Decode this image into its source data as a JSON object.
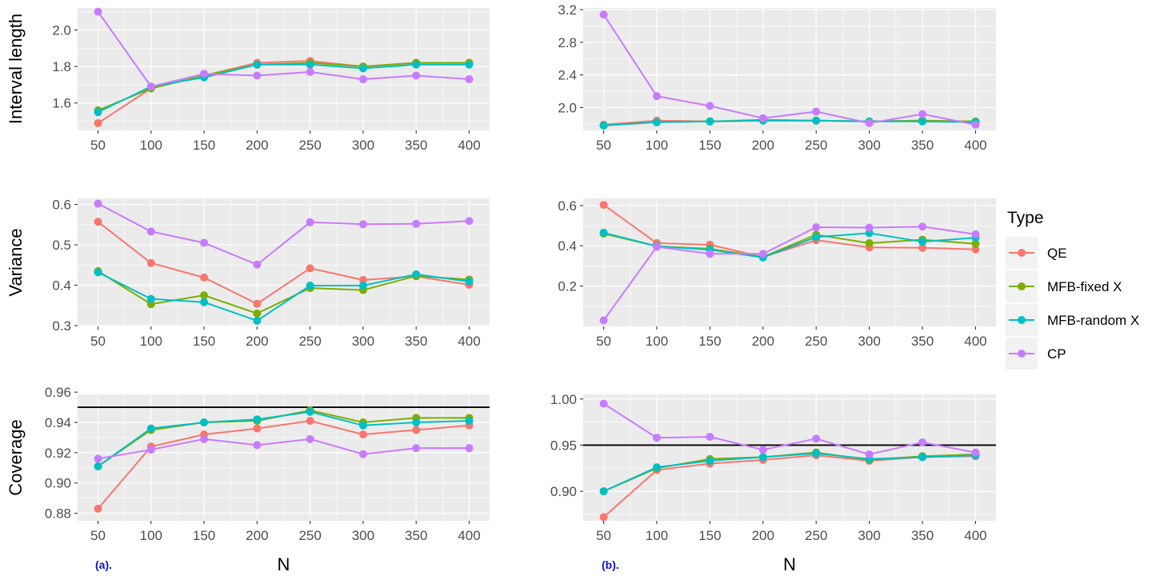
{
  "legend": {
    "title": "Type",
    "entries": [
      {
        "label": "QE",
        "color": "#F8766D"
      },
      {
        "label": "MFB-fixed X",
        "color": "#7CAE00"
      },
      {
        "label": "MFB-random X",
        "color": "#00BFC4"
      },
      {
        "label": "CP",
        "color": "#C77CFF"
      }
    ]
  },
  "panel_tags": {
    "a": "(a).",
    "b": "(b)."
  },
  "chart_data": [
    {
      "type": "line",
      "panel": "a",
      "ylabel": "Interval length",
      "xlabel": "",
      "x": [
        50,
        100,
        150,
        200,
        250,
        300,
        350,
        400
      ],
      "ylim": [
        1.45,
        2.12
      ],
      "yticks": [
        "1.6",
        "1.8",
        "2.0"
      ],
      "yticks_v": [
        1.6,
        1.8,
        2.0
      ],
      "grid": true,
      "series": [
        {
          "name": "QE",
          "values": [
            1.49,
            1.68,
            1.75,
            1.82,
            1.83,
            1.8,
            1.82,
            1.82
          ]
        },
        {
          "name": "MFB-fixed X",
          "values": [
            1.56,
            1.68,
            1.75,
            1.81,
            1.82,
            1.8,
            1.82,
            1.82
          ]
        },
        {
          "name": "MFB-random X",
          "values": [
            1.55,
            1.69,
            1.74,
            1.81,
            1.81,
            1.79,
            1.81,
            1.81
          ]
        },
        {
          "name": "CP",
          "values": [
            2.1,
            1.69,
            1.76,
            1.75,
            1.77,
            1.73,
            1.75,
            1.73
          ]
        }
      ]
    },
    {
      "type": "line",
      "panel": "b",
      "ylabel": "",
      "xlabel": "",
      "x": [
        50,
        100,
        150,
        200,
        250,
        300,
        350,
        400
      ],
      "ylim": [
        1.72,
        3.22
      ],
      "yticks": [
        "2.0",
        "2.4",
        "2.8",
        "3.2"
      ],
      "yticks_v": [
        2.0,
        2.4,
        2.8,
        3.2
      ],
      "grid": true,
      "series": [
        {
          "name": "QE",
          "values": [
            1.79,
            1.84,
            1.83,
            1.84,
            1.84,
            1.83,
            1.84,
            1.82
          ]
        },
        {
          "name": "MFB-fixed X",
          "values": [
            1.78,
            1.82,
            1.83,
            1.85,
            1.84,
            1.83,
            1.84,
            1.83
          ]
        },
        {
          "name": "MFB-random X",
          "values": [
            1.78,
            1.82,
            1.83,
            1.84,
            1.84,
            1.83,
            1.83,
            1.82
          ]
        },
        {
          "name": "CP",
          "values": [
            3.14,
            2.14,
            2.02,
            1.87,
            1.95,
            1.81,
            1.92,
            1.79
          ]
        }
      ]
    },
    {
      "type": "line",
      "panel": "a",
      "ylabel": "Variance",
      "xlabel": "",
      "x": [
        50,
        100,
        150,
        200,
        250,
        300,
        350,
        400
      ],
      "ylim": [
        0.298,
        0.615
      ],
      "yticks": [
        "0.3",
        "0.4",
        "0.5",
        "0.6"
      ],
      "yticks_v": [
        0.3,
        0.4,
        0.5,
        0.6
      ],
      "grid": true,
      "series": [
        {
          "name": "QE",
          "values": [
            0.557,
            0.455,
            0.419,
            0.354,
            0.442,
            0.413,
            0.422,
            0.401
          ]
        },
        {
          "name": "MFB-fixed X",
          "values": [
            0.435,
            0.353,
            0.375,
            0.33,
            0.393,
            0.388,
            0.423,
            0.414
          ]
        },
        {
          "name": "MFB-random X",
          "values": [
            0.432,
            0.366,
            0.358,
            0.312,
            0.399,
            0.399,
            0.427,
            0.409
          ]
        },
        {
          "name": "CP",
          "values": [
            0.602,
            0.533,
            0.505,
            0.451,
            0.556,
            0.551,
            0.552,
            0.559
          ]
        }
      ]
    },
    {
      "type": "line",
      "panel": "b",
      "ylabel": "",
      "xlabel": "",
      "x": [
        50,
        100,
        150,
        200,
        250,
        300,
        350,
        400
      ],
      "ylim": [
        0.0,
        0.635
      ],
      "yticks": [
        "0.2",
        "0.4",
        "0.6"
      ],
      "yticks_v": [
        0.2,
        0.4,
        0.6
      ],
      "grid": true,
      "series": [
        {
          "name": "QE",
          "values": [
            0.603,
            0.413,
            0.405,
            0.344,
            0.428,
            0.392,
            0.39,
            0.382
          ]
        },
        {
          "name": "MFB-fixed X",
          "values": [
            0.46,
            0.398,
            0.385,
            0.345,
            0.455,
            0.413,
            0.43,
            0.41
          ]
        },
        {
          "name": "MFB-random X",
          "values": [
            0.465,
            0.398,
            0.38,
            0.342,
            0.443,
            0.463,
            0.42,
            0.44
          ]
        },
        {
          "name": "CP",
          "values": [
            0.03,
            0.395,
            0.36,
            0.36,
            0.492,
            0.49,
            0.495,
            0.457
          ]
        }
      ]
    },
    {
      "type": "line",
      "panel": "a",
      "ylabel": "Coverage",
      "xlabel": "N",
      "x": [
        50,
        100,
        150,
        200,
        250,
        300,
        350,
        400
      ],
      "ylim": [
        0.875,
        0.9585
      ],
      "yticks": [
        "0.88",
        "0.90",
        "0.92",
        "0.94",
        "0.96"
      ],
      "yticks_v": [
        0.88,
        0.9,
        0.92,
        0.94,
        0.96
      ],
      "hline": 0.95,
      "grid": true,
      "series": [
        {
          "name": "QE",
          "values": [
            0.883,
            0.924,
            0.932,
            0.936,
            0.941,
            0.932,
            0.935,
            0.938
          ]
        },
        {
          "name": "MFB-fixed X",
          "values": [
            0.911,
            0.935,
            0.94,
            0.941,
            0.948,
            0.94,
            0.943,
            0.943
          ]
        },
        {
          "name": "MFB-random X",
          "values": [
            0.911,
            0.936,
            0.94,
            0.942,
            0.947,
            0.938,
            0.94,
            0.941
          ]
        },
        {
          "name": "CP",
          "values": [
            0.916,
            0.922,
            0.929,
            0.925,
            0.929,
            0.919,
            0.923,
            0.923
          ]
        }
      ]
    },
    {
      "type": "line",
      "panel": "b",
      "ylabel": "",
      "xlabel": "N",
      "x": [
        50,
        100,
        150,
        200,
        250,
        300,
        350,
        400
      ],
      "ylim": [
        0.868,
        1.005
      ],
      "yticks": [
        "0.90",
        "0.95",
        "1.00"
      ],
      "yticks_v": [
        0.9,
        0.95,
        1.0
      ],
      "hline": 0.95,
      "grid": true,
      "series": [
        {
          "name": "QE",
          "values": [
            0.872,
            0.923,
            0.93,
            0.934,
            0.939,
            0.933,
            0.937,
            0.938
          ]
        },
        {
          "name": "MFB-fixed X",
          "values": [
            0.9,
            0.925,
            0.935,
            0.937,
            0.942,
            0.934,
            0.938,
            0.94
          ]
        },
        {
          "name": "MFB-random X",
          "values": [
            0.9,
            0.926,
            0.933,
            0.937,
            0.941,
            0.935,
            0.937,
            0.939
          ]
        },
        {
          "name": "CP",
          "values": [
            0.995,
            0.958,
            0.959,
            0.945,
            0.957,
            0.94,
            0.953,
            0.942
          ]
        }
      ]
    }
  ]
}
